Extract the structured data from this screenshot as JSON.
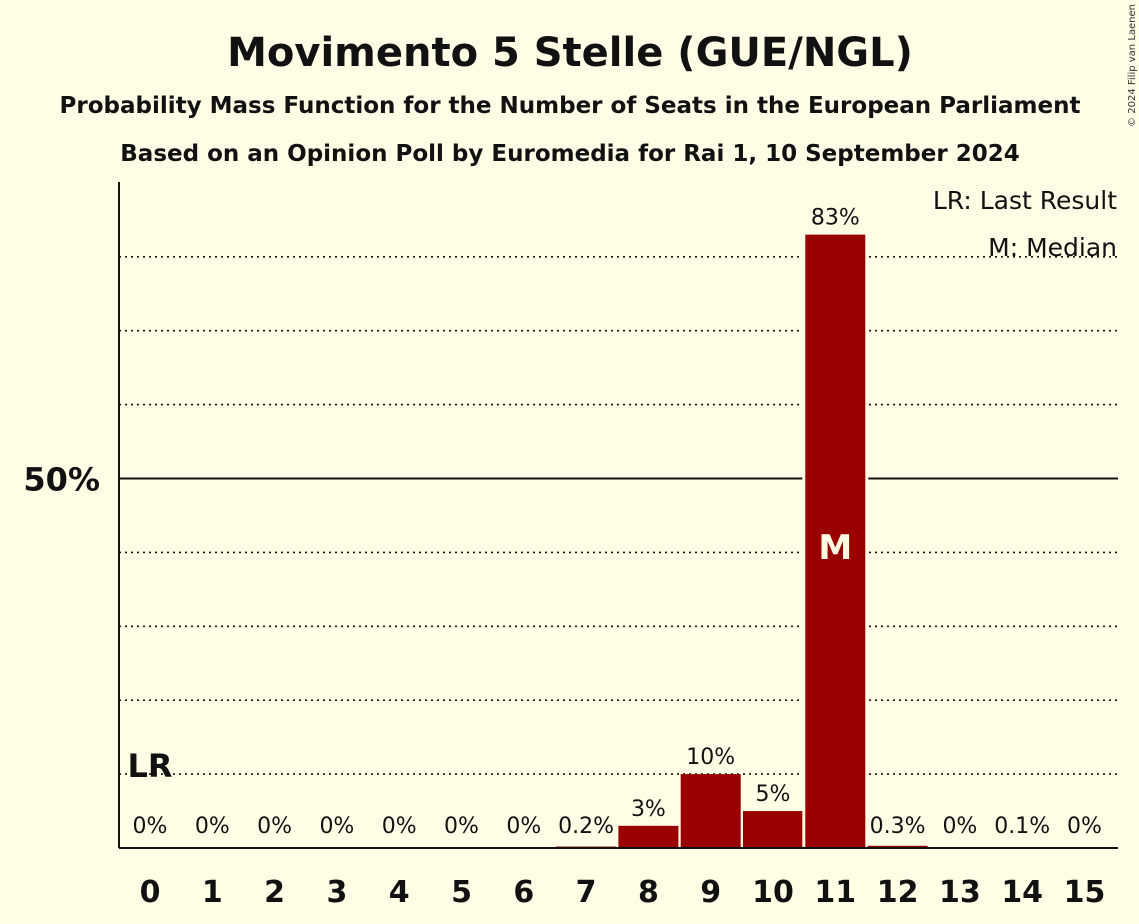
{
  "copyright": "© 2024 Filip van Laenen",
  "chart_data": {
    "type": "bar",
    "title": "Movimento 5 Stelle (GUE/NGL)",
    "subtitle": "Probability Mass Function for the Number of Seats in the European Parliament",
    "source": "Based on an Opinion Poll by Euromedia for Rai 1, 10 September 2024",
    "categories": [
      "0",
      "1",
      "2",
      "3",
      "4",
      "5",
      "6",
      "7",
      "8",
      "9",
      "10",
      "11",
      "12",
      "13",
      "14",
      "15"
    ],
    "values": [
      0,
      0,
      0,
      0,
      0,
      0,
      0,
      0.2,
      3,
      10,
      5,
      83,
      0.3,
      0,
      0.1,
      0
    ],
    "labels": [
      "0%",
      "0%",
      "0%",
      "0%",
      "0%",
      "0%",
      "0%",
      "0.2%",
      "3%",
      "10%",
      "5%",
      "83%",
      "0.3%",
      "0%",
      "0.1%",
      "0%"
    ],
    "ylim": [
      0,
      90
    ],
    "yticks": [
      {
        "value": 50,
        "label": "50%"
      }
    ],
    "gridlines": [
      10,
      20,
      30,
      40,
      60,
      70,
      80
    ],
    "last_result": {
      "seat": "0",
      "label": "LR"
    },
    "median": {
      "seat": "11",
      "label": "M"
    },
    "legend": [
      "LR: Last Result",
      "M: Median"
    ],
    "bar_color": "#990000",
    "background_color": "#fffde6"
  }
}
